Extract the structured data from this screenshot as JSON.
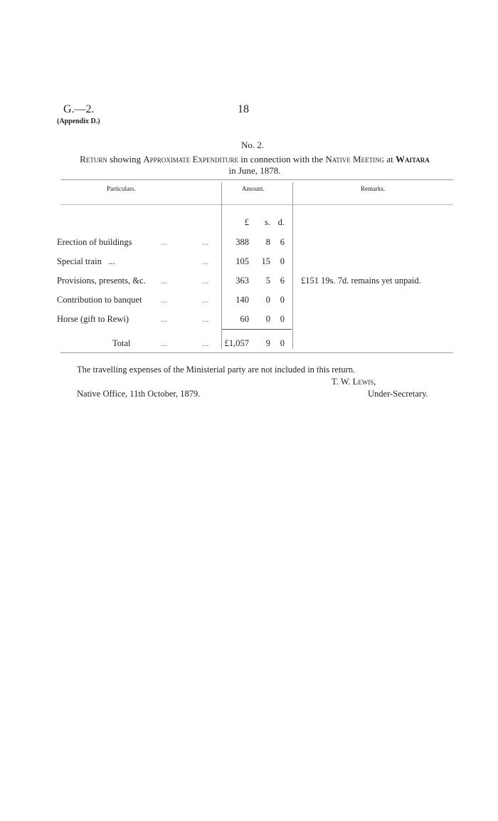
{
  "header": {
    "code": "G.—2.",
    "appendix": "(Appendix D.)",
    "page_number": "18"
  },
  "document": {
    "number": "No. 2.",
    "title_parts": [
      "Return",
      " showing ",
      "Approximate Expenditure",
      " in connection with the ",
      "Native Meeting",
      " at ",
      "Waitara"
    ],
    "title_line2": "in June, 1878."
  },
  "table": {
    "headers": {
      "particulars": "Particulars.",
      "amount": "Amount.",
      "remarks": "Remarks."
    },
    "units": {
      "pounds": "£",
      "shillings": "s.",
      "pence": "d."
    },
    "leader": "...",
    "rows": [
      {
        "particular": "Erection of buildings",
        "pounds": "388",
        "shillings": "8",
        "pence": "6",
        "remark": ""
      },
      {
        "particular": "Special train   ...",
        "pounds": "105",
        "shillings": "15",
        "pence": "0",
        "remark": ""
      },
      {
        "particular": "Provisions, presents, &c.",
        "pounds": "363",
        "shillings": "5",
        "pence": "6",
        "remark": "£151 19s. 7d. remains yet unpaid."
      },
      {
        "particular": "Contribution to banquet",
        "pounds": "140",
        "shillings": "0",
        "pence": "0",
        "remark": ""
      },
      {
        "particular": "Horse (gift to Rewi)",
        "pounds": "60",
        "shillings": "0",
        "pence": "0",
        "remark": ""
      }
    ],
    "total": {
      "label": "Total",
      "pounds": "£1,057",
      "shillings": "9",
      "pence": "0"
    }
  },
  "footer": {
    "note": "The travelling expenses of the Ministerial party are not included in this return.",
    "signatory": "T. W. Lewis,",
    "signatory_title": "Under-Secretary.",
    "place_date": "Native Office, 11th October, 1879."
  }
}
